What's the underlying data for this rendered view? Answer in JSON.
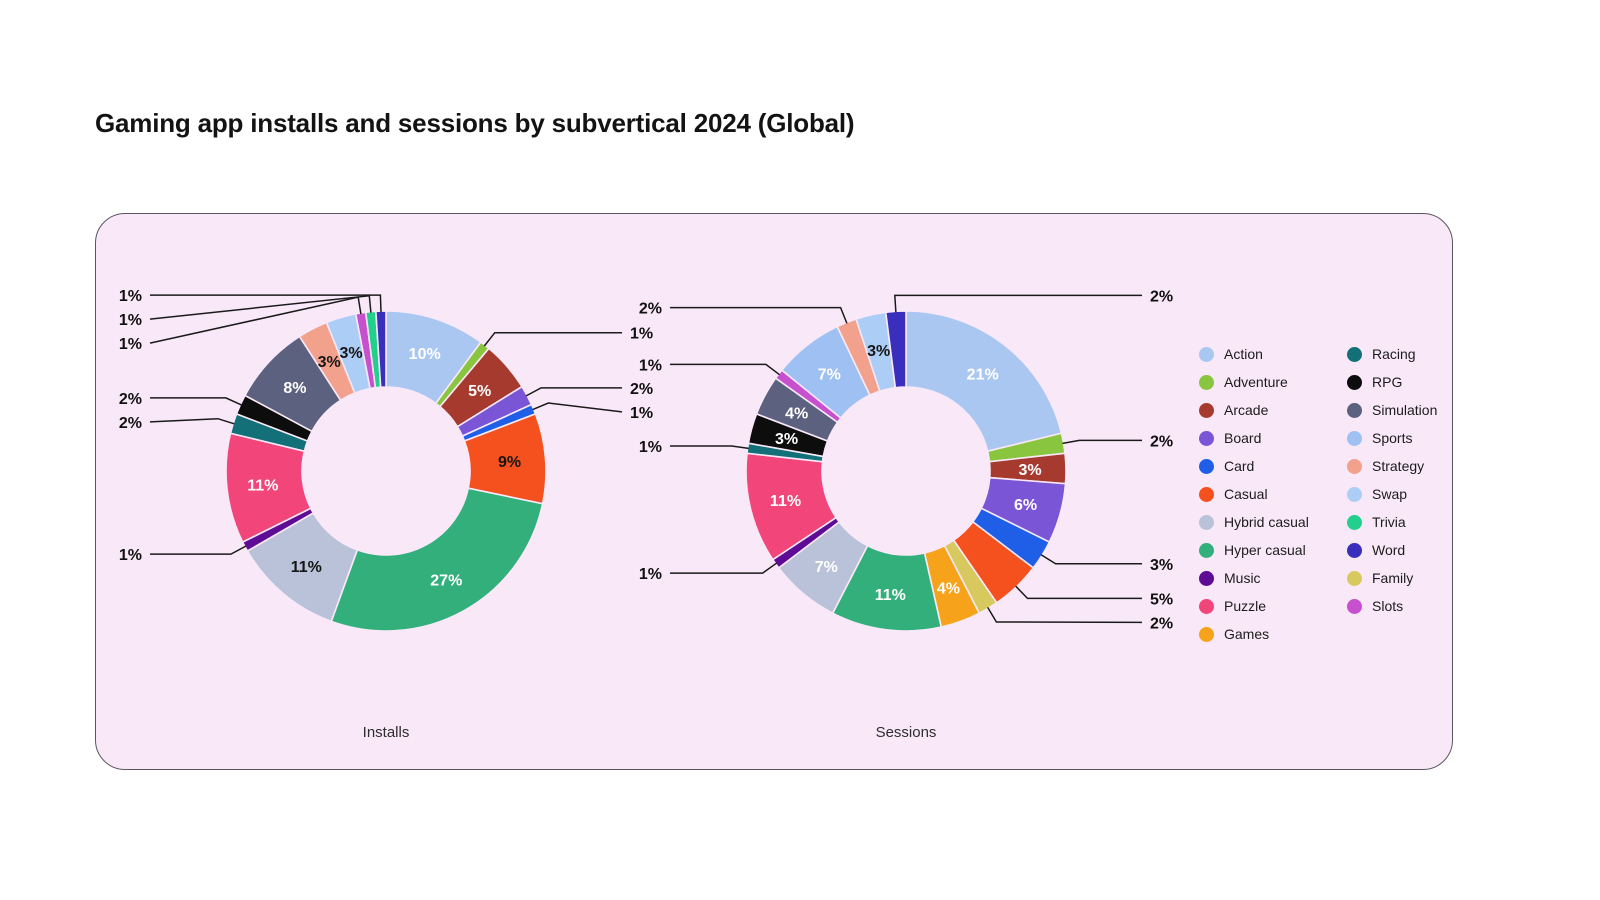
{
  "page": {
    "title": "Gaming app installs and sessions by subvertical 2024 (Global)"
  },
  "panel": {
    "background": "#f9e9f8"
  },
  "legend": {
    "columns": [
      {
        "items": [
          {
            "label": "Action",
            "color": "#aac7f2"
          },
          {
            "label": "Adventure",
            "color": "#8ac53f"
          },
          {
            "label": "Arcade",
            "color": "#a63a2f"
          },
          {
            "label": "Board",
            "color": "#7a55d6"
          },
          {
            "label": "Card",
            "color": "#1f5fe8"
          },
          {
            "label": "Casual",
            "color": "#f4511e"
          },
          {
            "label": "Hybrid casual",
            "color": "#b9c2d8"
          },
          {
            "label": "Hyper casual",
            "color": "#33af7c"
          },
          {
            "label": "Music",
            "color": "#5e0b96"
          },
          {
            "label": "Puzzle",
            "color": "#f24579"
          },
          {
            "label": "Games",
            "color": "#f7a21b"
          }
        ]
      },
      {
        "items": [
          {
            "label": "Racing",
            "color": "#137078"
          },
          {
            "label": "RPG",
            "color": "#0d0d0d"
          },
          {
            "label": "Simulation",
            "color": "#5d6180"
          },
          {
            "label": "Sports",
            "color": "#9fc0f2"
          },
          {
            "label": "Strategy",
            "color": "#f2a18c"
          },
          {
            "label": "Swap",
            "color": "#accdf6"
          },
          {
            "label": "Trivia",
            "color": "#23cf8c"
          },
          {
            "label": "Word",
            "color": "#3a2ebc"
          },
          {
            "label": "Family",
            "color": "#d8c95e"
          },
          {
            "label": "Slots",
            "color": "#c750cf"
          }
        ]
      }
    ]
  },
  "chart_data": [
    {
      "type": "pie",
      "title": "Installs",
      "unit": "percent",
      "segments": [
        {
          "label": "Action",
          "value": 10,
          "display": "10%",
          "color": "#aac7f2",
          "label_pos": "inside",
          "text_color": "#ffffff"
        },
        {
          "label": "Adventure",
          "value": 1,
          "display": "1%",
          "color": "#8ac53f",
          "label_pos": "callout"
        },
        {
          "label": "Arcade",
          "value": 5,
          "display": "5%",
          "color": "#a63a2f",
          "label_pos": "inside",
          "text_color": "#ffffff"
        },
        {
          "label": "Board",
          "value": 2,
          "display": "2%",
          "color": "#7a55d6",
          "label_pos": "callout"
        },
        {
          "label": "Card",
          "value": 1,
          "display": "1%",
          "color": "#1f5fe8",
          "label_pos": "callout"
        },
        {
          "label": "Casual",
          "value": 9,
          "display": "9%",
          "color": "#f4511e",
          "label_pos": "inside",
          "text_color": "#161616"
        },
        {
          "label": "Hyper casual",
          "value": 27,
          "display": "27%",
          "color": "#33af7c",
          "label_pos": "inside",
          "text_color": "#ffffff"
        },
        {
          "label": "Hybrid casual",
          "value": 11,
          "display": "11%",
          "color": "#b9c2d8",
          "label_pos": "inside",
          "text_color": "#161616"
        },
        {
          "label": "Music",
          "value": 1,
          "display": "1%",
          "color": "#5e0b96",
          "label_pos": "callout"
        },
        {
          "label": "Puzzle",
          "value": 11,
          "display": "11%",
          "color": "#f24579",
          "label_pos": "inside",
          "text_color": "#ffffff"
        },
        {
          "label": "Racing",
          "value": 2,
          "display": "2%",
          "color": "#137078",
          "label_pos": "callout"
        },
        {
          "label": "RPG",
          "value": 2,
          "display": "2%",
          "color": "#0d0d0d",
          "label_pos": "callout"
        },
        {
          "label": "Simulation",
          "value": 8,
          "display": "8%",
          "color": "#5d6180",
          "label_pos": "inside",
          "text_color": "#ffffff"
        },
        {
          "label": "Strategy",
          "value": 3,
          "display": "3%",
          "color": "#f2a18c",
          "label_pos": "inside",
          "text_color": "#161616"
        },
        {
          "label": "Swap",
          "value": 3,
          "display": "3%",
          "color": "#accdf6",
          "label_pos": "inside",
          "text_color": "#161616"
        },
        {
          "label": "Slots",
          "value": 1,
          "display": "1%",
          "color": "#c750cf",
          "label_pos": "callout"
        },
        {
          "label": "Trivia",
          "value": 1,
          "display": "1%",
          "color": "#23cf8c",
          "label_pos": "callout"
        },
        {
          "label": "Word",
          "value": 1,
          "display": "1%",
          "color": "#3a2ebc",
          "label_pos": "callout"
        }
      ]
    },
    {
      "type": "pie",
      "title": "Sessions",
      "unit": "percent",
      "segments": [
        {
          "label": "Action",
          "value": 21,
          "display": "21%",
          "color": "#aac7f2",
          "label_pos": "inside",
          "text_color": "#ffffff"
        },
        {
          "label": "Adventure",
          "value": 2,
          "display": "2%",
          "color": "#8ac53f",
          "label_pos": "callout"
        },
        {
          "label": "Arcade",
          "value": 3,
          "display": "3%",
          "color": "#a63a2f",
          "label_pos": "inside",
          "text_color": "#ffffff"
        },
        {
          "label": "Board",
          "value": 6,
          "display": "6%",
          "color": "#7a55d6",
          "label_pos": "inside",
          "text_color": "#ffffff"
        },
        {
          "label": "Card",
          "value": 3,
          "display": "3%",
          "color": "#1f5fe8",
          "label_pos": "callout"
        },
        {
          "label": "Casual",
          "value": 5,
          "display": "5%",
          "color": "#f4511e",
          "label_pos": "callout"
        },
        {
          "label": "Family",
          "value": 2,
          "display": "2%",
          "color": "#d8c95e",
          "label_pos": "callout"
        },
        {
          "label": "Games",
          "value": 4,
          "display": "4%",
          "color": "#f7a21b",
          "label_pos": "inside",
          "text_color": "#ffffff"
        },
        {
          "label": "Hyper casual",
          "value": 11,
          "display": "11%",
          "color": "#33af7c",
          "label_pos": "inside",
          "text_color": "#ffffff"
        },
        {
          "label": "Hybrid casual",
          "value": 7,
          "display": "7%",
          "color": "#b9c2d8",
          "label_pos": "inside",
          "text_color": "#ffffff"
        },
        {
          "label": "Music",
          "value": 1,
          "display": "1%",
          "color": "#5e0b96",
          "label_pos": "callout"
        },
        {
          "label": "Puzzle",
          "value": 11,
          "display": "11%",
          "color": "#f24579",
          "label_pos": "inside",
          "text_color": "#ffffff"
        },
        {
          "label": "Racing",
          "value": 1,
          "display": "1%",
          "color": "#137078",
          "label_pos": "callout"
        },
        {
          "label": "RPG",
          "value": 3,
          "display": "3%",
          "color": "#0d0d0d",
          "label_pos": "inside",
          "text_color": "#ffffff"
        },
        {
          "label": "Simulation",
          "value": 4,
          "display": "4%",
          "color": "#5d6180",
          "label_pos": "inside",
          "text_color": "#ffffff"
        },
        {
          "label": "Slots",
          "value": 1,
          "display": "1%",
          "color": "#c750cf",
          "label_pos": "callout"
        },
        {
          "label": "Sports",
          "value": 7,
          "display": "7%",
          "color": "#9fc0f2",
          "label_pos": "inside",
          "text_color": "#ffffff"
        },
        {
          "label": "Strategy",
          "value": 2,
          "display": "2%",
          "color": "#f2a18c",
          "label_pos": "callout"
        },
        {
          "label": "Swap",
          "value": 3,
          "display": "3%",
          "color": "#accdf6",
          "label_pos": "inside",
          "text_color": "#161616"
        },
        {
          "label": "Word",
          "value": 2,
          "display": "2%",
          "color": "#3a2ebc",
          "label_pos": "callout",
          "callout_side": "right"
        }
      ]
    }
  ]
}
